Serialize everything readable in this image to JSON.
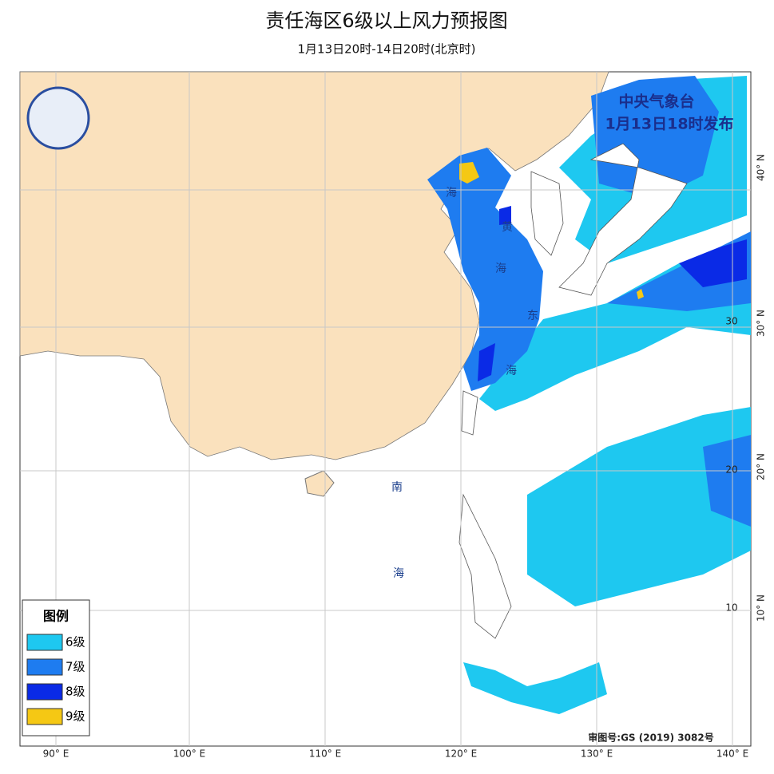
{
  "header": {
    "title": "责任海区6级以上风力预报图",
    "subtitle": "1月13日20时-14日20时(北京时)"
  },
  "issuer": {
    "agency": "中央气象台",
    "issued": "1月13日18时发布"
  },
  "legend": {
    "title": "图例",
    "items": [
      {
        "label": "6级",
        "color": "#1ec8f0"
      },
      {
        "label": "7级",
        "color": "#1e7cf0"
      },
      {
        "label": "8级",
        "color": "#0a2ae6"
      },
      {
        "label": "9级",
        "color": "#f5c814"
      }
    ]
  },
  "sea_labels": [
    "海",
    "黄",
    "海",
    "东",
    "海",
    "南",
    "海"
  ],
  "lon_labels": [
    "90° E",
    "100° E",
    "110° E",
    "120° E",
    "130° E",
    "140° E"
  ],
  "lat_labels": [
    "40° N",
    "30° N",
    "20° N",
    "10° N"
  ],
  "lat_inner": [
    "30",
    "20",
    "10"
  ],
  "approval": "审图号:GS (2019) 3082号"
}
